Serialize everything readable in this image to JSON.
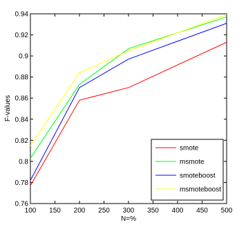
{
  "chart_data": {
    "type": "line",
    "xlabel": "N=%",
    "ylabel": "F-values",
    "xlim": [
      100,
      500
    ],
    "ylim": [
      0.76,
      0.94
    ],
    "xticks": [
      100,
      150,
      200,
      250,
      300,
      350,
      400,
      450,
      500
    ],
    "yticks": [
      0.76,
      0.78,
      0.8,
      0.82,
      0.84,
      0.86,
      0.88,
      0.9,
      0.92,
      0.94
    ],
    "x": [
      100,
      200,
      300,
      500
    ],
    "legend_position": "bottom-right",
    "grid": false,
    "series": [
      {
        "name": "smote",
        "color": "#ff0000",
        "values": [
          0.777,
          0.858,
          0.87,
          0.913
        ]
      },
      {
        "name": "msmote",
        "color": "#00ff00",
        "values": [
          0.803,
          0.873,
          0.907,
          0.937
        ]
      },
      {
        "name": "smoteboost",
        "color": "#0000ff",
        "values": [
          0.782,
          0.87,
          0.897,
          0.931
        ]
      },
      {
        "name": "msmoteboost",
        "color": "#ffff00",
        "values": [
          0.815,
          0.884,
          0.905,
          0.939
        ]
      }
    ]
  }
}
